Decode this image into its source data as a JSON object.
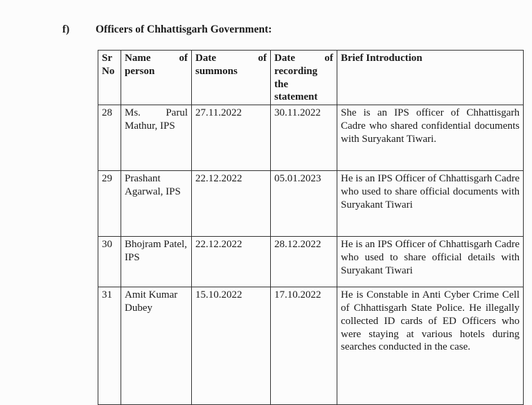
{
  "section": {
    "marker": "f)",
    "title": "Officers of Chhattisgarh Government:"
  },
  "table": {
    "headers": [
      "Sr No",
      "Name of person",
      "Date of summons",
      "Date of recording the statement",
      "Brief Introduction"
    ],
    "rows": [
      {
        "sr": "28",
        "name": "Ms. Parul Mathur, IPS",
        "summons": "27.11.2022",
        "recording": "30.11.2022",
        "intro": "She is an IPS officer of Chhattisgarh Cadre who shared confidential documents with Suryakant Tiwari."
      },
      {
        "sr": "29",
        "name": "Prashant Agarwal, IPS",
        "summons": "22.12.2022",
        "recording": "05.01.2023",
        "intro": "He is an IPS Officer of Chhattisgarh Cadre who used to share official documents with Suryakant Tiwari"
      },
      {
        "sr": "30",
        "name": "Bhojram Patel, IPS",
        "summons": "22.12.2022",
        "recording": "28.12.2022",
        "intro": "He is an IPS Officer of Chhattisgarh Cadre who used to share official details with Suryakant Tiwari"
      },
      {
        "sr": "31",
        "name": "Amit Kumar Dubey",
        "summons": "15.10.2022",
        "recording": "17.10.2022",
        "intro": "He is Constable in Anti Cyber Crime Cell of Chhattisgarh State Police. He illegally collected ID cards of ED Officers who were staying at various hotels during searches conducted in the case."
      }
    ]
  }
}
